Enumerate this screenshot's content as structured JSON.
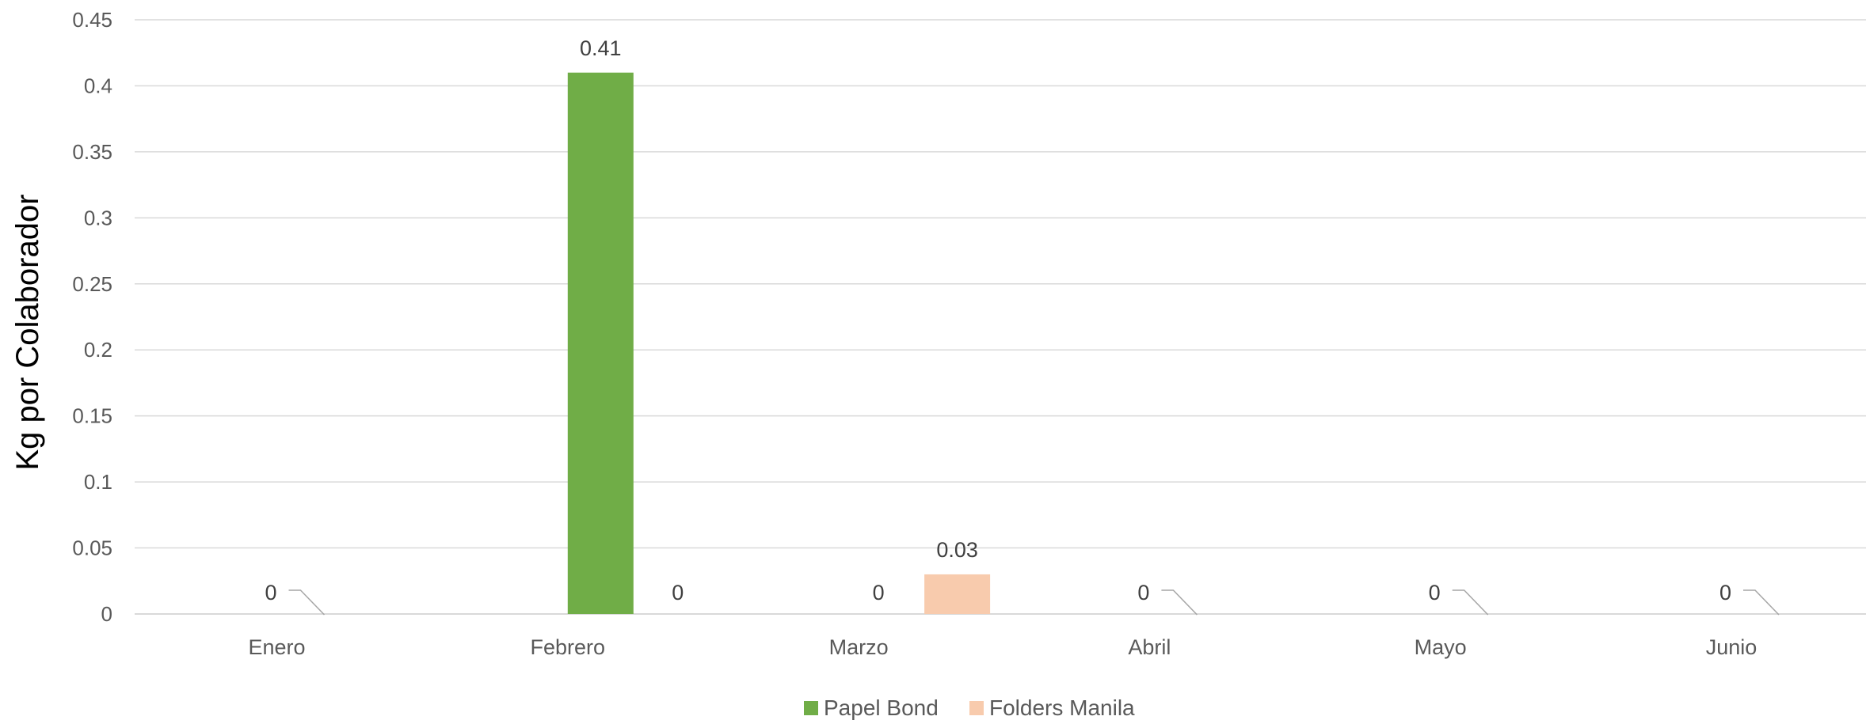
{
  "chart_data": {
    "type": "bar",
    "title": "",
    "xlabel": "",
    "ylabel": "Kg por Colaborador",
    "ylim": [
      0,
      0.45
    ],
    "y_ticks": [
      0,
      0.05,
      0.1,
      0.15,
      0.2,
      0.25,
      0.3,
      0.35,
      0.4,
      0.45
    ],
    "y_tick_labels": [
      "0",
      "0.05",
      "0.1",
      "0.15",
      "0.2",
      "0.25",
      "0.3",
      "0.35",
      "0.4",
      "0.45"
    ],
    "categories": [
      "Enero",
      "Febrero",
      "Marzo",
      "Abril",
      "Mayo",
      "Junio"
    ],
    "series": [
      {
        "name": "Papel Bond",
        "color": "#70ad47",
        "values": [
          0,
          0.41,
          0,
          0,
          0,
          0
        ],
        "data_labels": [
          "0",
          "0.41",
          "0",
          "0",
          "0",
          "0"
        ]
      },
      {
        "name": "Folders Manila",
        "color": "#f8cbad",
        "values": [
          0,
          0,
          0.03,
          0,
          0,
          0
        ],
        "data_labels": [
          "",
          "0",
          "0.03",
          "",
          "",
          ""
        ]
      }
    ],
    "grid": true,
    "legend": "bottom-center"
  }
}
